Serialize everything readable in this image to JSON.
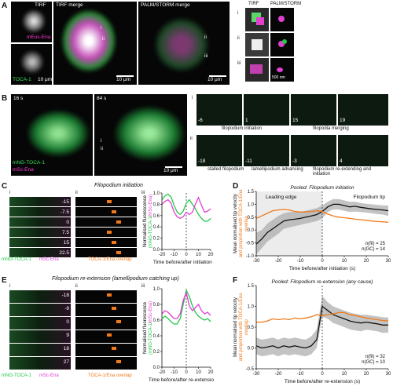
{
  "panels": {
    "A": {
      "letter": "A",
      "tirf_label": "TIRF",
      "tirf_merge_label": "TIRF merge",
      "palm_merge_label": "PALM/STORM merge",
      "ena_label": "mEos-Ena",
      "toca_label": "TOCA-1",
      "scale_10um": "10 μm",
      "insets_tirf": "TIRF",
      "insets_palm": "PALM/STORM",
      "roman_i": "i",
      "roman_ii": "ii",
      "roman_iii": "iii",
      "scale_500nm": "500 nm"
    },
    "B": {
      "letter": "B",
      "t1": "16 s",
      "t2": "84 s",
      "toca_label": "mNG-TOCA-1",
      "ena_label": "mSc-Ena",
      "scale_10um": "10 μm",
      "roman_i": "i",
      "roman_ii": "ii",
      "top_row_times": [
        "-6",
        "1",
        "15",
        "19"
      ],
      "bottom_row_times": [
        "-18",
        "-11",
        "-3",
        "4"
      ],
      "cap_initiation": "filopodium initiation",
      "cap_merging": "filopodia merging",
      "cap_stalled": "stalled filopodium",
      "cap_lamellipodium": "lamellipodium advancing",
      "cap_reextending": "filopodium re-extending and initiation"
    },
    "C": {
      "letter": "C",
      "title": "Filopodium initiation",
      "roman_i": "i",
      "roman_ii": "ii",
      "roman_iii": "iii",
      "strip_times": [
        "-15",
        "-7.5",
        "0",
        "7.5",
        "15",
        "22.5"
      ],
      "legend_toca": "mNG-TOCA-1",
      "legend_ena": "mSc-Ena",
      "overlap_label": "TOCA-1/Ena overlap",
      "ylabel": "Normalised fluorescence",
      "ylabel_parts": [
        "(mNG-TOCA-1",
        "/",
        "mSc-Ena)"
      ],
      "xlabel": "Time before/after initiation (s)"
    },
    "D": {
      "letter": "D",
      "title": "Pooled: Filopodium initiation",
      "region_left": "Leading edge",
      "region_right": "Filopodium tip",
      "ylabel_line1": "Mean normalised tip velocity",
      "ylabel_line2": "and proportion with TOCA-1/Ena",
      "ylabel_line3": "overlap",
      "n_fil": "n(fil) = 25",
      "n_gc": "n(GC) = 14",
      "xlabel": "Time before/after initiation (s)"
    },
    "E": {
      "letter": "E",
      "title": "Filopodium re-extension (lamellipodium catching up)",
      "roman_i": "i",
      "roman_ii": "ii",
      "roman_iii": "iii",
      "strip_times": [
        "-18",
        "-9",
        "0",
        "9",
        "18",
        "27"
      ],
      "legend_toca": "mNG-TOCA-1",
      "legend_ena": "mSc-Ena",
      "overlap_label": "TOCA-1/Ena overlap",
      "ylabel": "Normalised fluorescence",
      "ylabel_parts": [
        "(mNG-TOCA-1",
        "/",
        "mSc-Ena)"
      ],
      "xlabel": "Time before/after re-extension (s)"
    },
    "F": {
      "letter": "F",
      "title": "Pooled: Filopodium re-extension (any cause)",
      "ylabel_line1": "Mean normalised tip velocity",
      "ylabel_line2": "and proportion with TOCA-1/Ena",
      "ylabel_line3": "overlap",
      "n_fil": "n(fil) = 32",
      "n_gc": "n(GC) = 10",
      "xlabel": "Time before/after re-extension (s)"
    }
  },
  "colors": {
    "toca_green": "#22c84a",
    "ena_magenta": "#e040d0",
    "overlap_orange": "#f07a1a",
    "mean_black": "#111111",
    "band_grey": "#9a9a9a"
  },
  "chart_data": [
    {
      "id": "C-iii",
      "type": "line",
      "xlabel": "Time before/after initiation (s)",
      "ylabel": "Normalised fluorescence (mNG-TOCA-1 / mSc-Ena)",
      "xlim": [
        -20,
        20
      ],
      "ylim": [
        0.0,
        1.0
      ],
      "xticks": [
        -20,
        -10,
        0,
        10,
        20
      ],
      "yticks": [
        0.0,
        0.2,
        0.4,
        0.6,
        0.8,
        1.0
      ],
      "x": [
        -20,
        -17.5,
        -15,
        -12.5,
        -10,
        -7.5,
        -5,
        -2.5,
        0,
        2.5,
        5,
        7.5,
        10,
        12.5,
        15,
        17.5,
        20
      ],
      "series": [
        {
          "color": "#22c84a",
          "values": [
            0.88,
            0.95,
            0.98,
            0.93,
            0.78,
            0.66,
            0.62,
            0.68,
            0.82,
            0.88,
            0.8,
            0.72,
            0.62,
            0.55,
            0.5,
            0.5,
            0.55
          ]
        },
        {
          "color": "#e040d0",
          "values": [
            0.8,
            0.85,
            0.88,
            0.82,
            0.66,
            0.58,
            0.55,
            0.58,
            0.66,
            0.62,
            0.66,
            0.8,
            0.92,
            0.78,
            0.66,
            0.68,
            0.72
          ]
        }
      ],
      "vline": 0
    },
    {
      "id": "D",
      "type": "line",
      "title": "Pooled: Filopodium initiation",
      "xlabel": "Time before/after initiation (s)",
      "ylabel": "Mean normalised tip velocity and proportion with TOCA-1/Ena overlap",
      "xlim": [
        -30,
        30
      ],
      "ylim": [
        -1.0,
        1.5
      ],
      "xticks": [
        -30,
        -20,
        -10,
        0,
        10,
        20,
        30
      ],
      "yticks": [
        -1.0,
        -0.5,
        0.0,
        0.5,
        1.0,
        1.5
      ],
      "shaded_region": [
        -30,
        0
      ],
      "x": [
        -30,
        -27.5,
        -25,
        -22.5,
        -20,
        -17.5,
        -15,
        -12.5,
        -10,
        -7.5,
        -5,
        -2.5,
        0,
        2.5,
        5,
        7.5,
        10,
        12.5,
        15,
        17.5,
        20,
        22.5,
        25,
        27.5,
        30
      ],
      "series": [
        {
          "color": "#111111",
          "values": [
            -0.55,
            -0.35,
            -0.1,
            0.05,
            0.2,
            0.35,
            0.4,
            0.42,
            0.45,
            0.5,
            0.55,
            0.6,
            0.72,
            0.9,
            1.0,
            1.0,
            0.95,
            0.9,
            0.92,
            0.88,
            0.85,
            0.82,
            0.8,
            0.78,
            0.75
          ]
        },
        {
          "color": "#f07a1a",
          "values": [
            0.45,
            0.55,
            0.65,
            0.75,
            0.78,
            0.8,
            0.78,
            0.72,
            0.7,
            0.7,
            0.72,
            0.75,
            0.72,
            0.62,
            0.55,
            0.5,
            0.48,
            0.45,
            0.42,
            0.4,
            0.38,
            0.35,
            0.33,
            0.32,
            0.3
          ]
        }
      ],
      "band": {
        "upper": [
          -0.1,
          0.0,
          0.25,
          0.4,
          0.55,
          0.65,
          0.7,
          0.7,
          0.7,
          0.75,
          0.8,
          0.85,
          0.95,
          1.1,
          1.2,
          1.2,
          1.15,
          1.1,
          1.1,
          1.05,
          1.02,
          1.0,
          0.98,
          0.96,
          0.95
        ],
        "lower": [
          -0.95,
          -0.7,
          -0.45,
          -0.3,
          -0.15,
          0.05,
          0.1,
          0.15,
          0.2,
          0.25,
          0.3,
          0.35,
          0.45,
          0.7,
          0.8,
          0.8,
          0.75,
          0.7,
          0.72,
          0.7,
          0.68,
          0.65,
          0.62,
          0.6,
          0.55
        ]
      },
      "vline": 0
    },
    {
      "id": "E-iii",
      "type": "line",
      "xlabel": "Time before/after re-extension (s)",
      "ylabel": "Normalised fluorescence (mNG-TOCA-1 / mSc-Ena)",
      "xlim": [
        -20,
        20
      ],
      "ylim": [
        0.0,
        1.0
      ],
      "xticks": [
        -20,
        -10,
        0,
        10,
        20
      ],
      "yticks": [
        0.0,
        0.2,
        0.4,
        0.6,
        0.8,
        1.0
      ],
      "x": [
        -20,
        -17.5,
        -15,
        -12.5,
        -10,
        -7.5,
        -5,
        -2.5,
        0,
        2.5,
        5,
        7.5,
        10,
        12.5,
        15,
        17.5,
        20
      ],
      "series": [
        {
          "color": "#22c84a",
          "values": [
            0.62,
            0.65,
            0.62,
            0.58,
            0.55,
            0.55,
            0.62,
            0.8,
            0.98,
            0.9,
            0.78,
            0.7,
            0.65,
            0.62,
            0.6,
            0.62,
            0.58
          ]
        },
        {
          "color": "#e040d0",
          "values": [
            0.68,
            0.72,
            0.7,
            0.66,
            0.62,
            0.62,
            0.68,
            0.85,
            0.95,
            0.78,
            0.72,
            0.76,
            0.8,
            0.72,
            0.68,
            0.7,
            0.66
          ]
        }
      ],
      "vline": 0
    },
    {
      "id": "F",
      "type": "line",
      "title": "Pooled: Filopodium re-extension (any cause)",
      "xlabel": "Time before/after re-extension (s)",
      "ylabel": "Mean normalised tip velocity and proportion with TOCA-1/Ena overlap",
      "xlim": [
        -30,
        30
      ],
      "ylim": [
        -0.5,
        1.5
      ],
      "xticks": [
        -30,
        -20,
        -10,
        0,
        10,
        20,
        30
      ],
      "yticks": [
        -0.5,
        0.0,
        0.5,
        1.0,
        1.5
      ],
      "x": [
        -30,
        -27.5,
        -25,
        -22.5,
        -20,
        -17.5,
        -15,
        -12.5,
        -10,
        -7.5,
        -5,
        -2.5,
        0,
        2.5,
        5,
        7.5,
        10,
        12.5,
        15,
        17.5,
        20,
        22.5,
        25,
        27.5,
        30
      ],
      "series": [
        {
          "color": "#111111",
          "values": [
            0.05,
            0.0,
            0.02,
            0.05,
            0.0,
            0.05,
            0.02,
            0.05,
            0.02,
            0.0,
            0.05,
            0.2,
            1.0,
            0.9,
            0.8,
            0.75,
            0.7,
            0.65,
            0.62,
            0.6,
            0.62,
            0.6,
            0.58,
            0.55,
            0.55
          ]
        },
        {
          "color": "#f07a1a",
          "values": [
            0.62,
            0.62,
            0.65,
            0.7,
            0.68,
            0.7,
            0.68,
            0.72,
            0.7,
            0.72,
            0.75,
            0.8,
            0.78,
            0.8,
            0.82,
            0.85,
            0.85,
            0.8,
            0.78,
            0.75,
            0.72,
            0.7,
            0.68,
            0.66,
            0.65
          ]
        }
      ],
      "band": {
        "upper": [
          0.25,
          0.2,
          0.22,
          0.25,
          0.2,
          0.25,
          0.22,
          0.25,
          0.22,
          0.2,
          0.28,
          0.45,
          1.25,
          1.1,
          1.0,
          0.95,
          0.9,
          0.85,
          0.82,
          0.8,
          0.8,
          0.78,
          0.76,
          0.74,
          0.73
        ],
        "lower": [
          -0.15,
          -0.2,
          -0.18,
          -0.15,
          -0.2,
          -0.15,
          -0.18,
          -0.15,
          -0.18,
          -0.2,
          -0.15,
          0.0,
          0.75,
          0.7,
          0.6,
          0.55,
          0.5,
          0.45,
          0.42,
          0.4,
          0.44,
          0.42,
          0.4,
          0.36,
          0.37
        ]
      },
      "vline": 0
    }
  ]
}
